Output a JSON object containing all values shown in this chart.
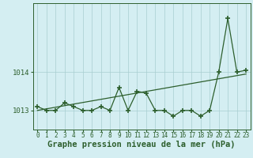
{
  "xlabel": "Graphe pression niveau de la mer (hPa)",
  "background_color": "#d4eef2",
  "line_color": "#2d5f2d",
  "grid_color": "#a8cdd0",
  "x_values": [
    0,
    1,
    2,
    3,
    4,
    5,
    6,
    7,
    8,
    9,
    10,
    11,
    12,
    13,
    14,
    15,
    16,
    17,
    18,
    19,
    20,
    21,
    22,
    23
  ],
  "y_values": [
    1013.1,
    1013.0,
    1013.0,
    1013.2,
    1013.1,
    1013.0,
    1013.0,
    1013.1,
    1013.0,
    1013.6,
    1013.0,
    1013.5,
    1013.45,
    1013.0,
    1013.0,
    1012.85,
    1013.0,
    1013.0,
    1012.85,
    1013.0,
    1014.0,
    1015.4,
    1014.0,
    1014.05
  ],
  "trend_x": [
    0,
    23
  ],
  "trend_y": [
    1013.0,
    1013.95
  ],
  "ylim_min": 1012.5,
  "ylim_max": 1015.8,
  "yticks": [
    1013,
    1014
  ],
  "ytick_labels": [
    "1013",
    "1014"
  ],
  "xticks": [
    0,
    1,
    2,
    3,
    4,
    5,
    6,
    7,
    8,
    9,
    10,
    11,
    12,
    13,
    14,
    15,
    16,
    17,
    18,
    19,
    20,
    21,
    22,
    23
  ],
  "marker": "+",
  "markersize": 4,
  "markeredgewidth": 1.2,
  "linewidth": 0.9,
  "xlabel_fontsize": 7.5,
  "xlabel_fontweight": "bold",
  "tick_fontsize": 5.5,
  "ytick_fontsize": 6.5
}
